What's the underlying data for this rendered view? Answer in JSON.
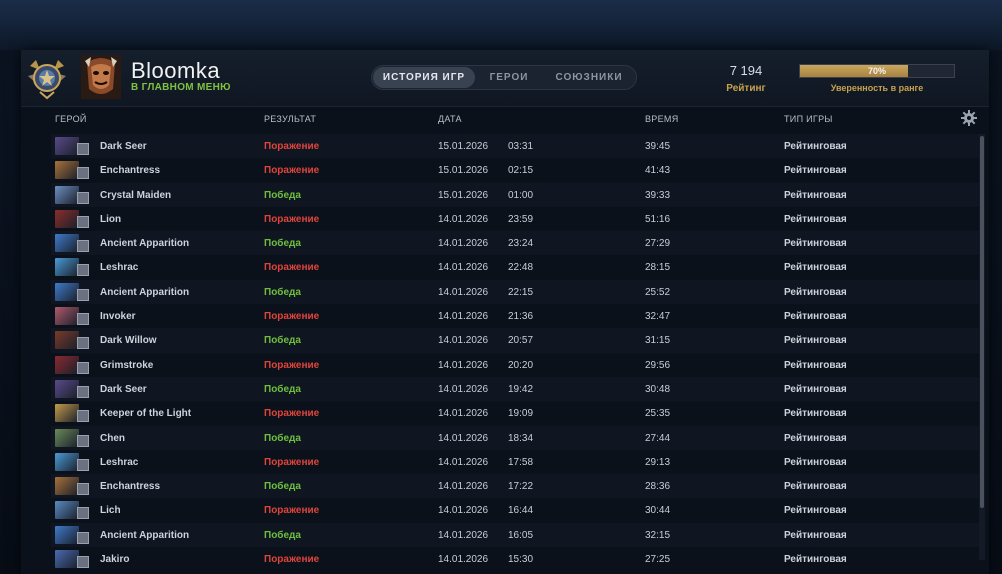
{
  "player": {
    "name": "Bloomka",
    "status": "В ГЛАВНОМ МЕНЮ"
  },
  "tabs": [
    {
      "label": "ИСТОРИЯ ИГР",
      "active": true
    },
    {
      "label": "ГЕРОИ",
      "active": false
    },
    {
      "label": "СОЮЗНИКИ",
      "active": false
    }
  ],
  "rating": {
    "value": "7 194",
    "label": "Рейтинг"
  },
  "confidence": {
    "value_text": "70%",
    "fraction": 0.7,
    "label": "Уверенность в ранге"
  },
  "columns": {
    "hero": "ГЕРОЙ",
    "result": "РЕЗУЛЬТАТ",
    "date": "ДАТА",
    "duration": "ВРЕМЯ",
    "game_type": "ТИП ИГРЫ"
  },
  "icons": {
    "settings": "gear-icon",
    "rank": "rank-medal-icon"
  },
  "colors": {
    "loss": "#e0443a",
    "win": "#6fbf3d",
    "accent_gold": "#c7a24e",
    "status_green": "#7fc241"
  },
  "matches": [
    {
      "hero": "Dark Seer",
      "result": "Поражение",
      "outcome": "loss",
      "date": "15.01.2026",
      "time": "03:31",
      "duration": "39:45",
      "type": "Рейтинговая",
      "portrait": "#5a4a8a"
    },
    {
      "hero": "Enchantress",
      "result": "Поражение",
      "outcome": "loss",
      "date": "15.01.2026",
      "time": "02:15",
      "duration": "41:43",
      "type": "Рейтинговая",
      "portrait": "#a8713a"
    },
    {
      "hero": "Crystal Maiden",
      "result": "Победа",
      "outcome": "win",
      "date": "15.01.2026",
      "time": "01:00",
      "duration": "39:33",
      "type": "Рейтинговая",
      "portrait": "#6e8fc2"
    },
    {
      "hero": "Lion",
      "result": "Поражение",
      "outcome": "loss",
      "date": "14.01.2026",
      "time": "23:59",
      "duration": "51:16",
      "type": "Рейтинговая",
      "portrait": "#8a2e2a"
    },
    {
      "hero": "Ancient Apparition",
      "result": "Победа",
      "outcome": "win",
      "date": "14.01.2026",
      "time": "23:24",
      "duration": "27:29",
      "type": "Рейтинговая",
      "portrait": "#3f7bc9"
    },
    {
      "hero": "Leshrac",
      "result": "Поражение",
      "outcome": "loss",
      "date": "14.01.2026",
      "time": "22:48",
      "duration": "28:15",
      "type": "Рейтинговая",
      "portrait": "#4a9ad6"
    },
    {
      "hero": "Ancient Apparition",
      "result": "Победа",
      "outcome": "win",
      "date": "14.01.2026",
      "time": "22:15",
      "duration": "25:52",
      "type": "Рейтинговая",
      "portrait": "#3f7bc9"
    },
    {
      "hero": "Invoker",
      "result": "Поражение",
      "outcome": "loss",
      "date": "14.01.2026",
      "time": "21:36",
      "duration": "32:47",
      "type": "Рейтинговая",
      "portrait": "#b05a6a"
    },
    {
      "hero": "Dark Willow",
      "result": "Победа",
      "outcome": "win",
      "date": "14.01.2026",
      "time": "20:57",
      "duration": "31:15",
      "type": "Рейтинговая",
      "portrait": "#7a3a2a"
    },
    {
      "hero": "Grimstroke",
      "result": "Поражение",
      "outcome": "loss",
      "date": "14.01.2026",
      "time": "20:20",
      "duration": "29:56",
      "type": "Рейтинговая",
      "portrait": "#8a2a30"
    },
    {
      "hero": "Dark Seer",
      "result": "Победа",
      "outcome": "win",
      "date": "14.01.2026",
      "time": "19:42",
      "duration": "30:48",
      "type": "Рейтинговая",
      "portrait": "#5a4a8a"
    },
    {
      "hero": "Keeper of the Light",
      "result": "Поражение",
      "outcome": "loss",
      "date": "14.01.2026",
      "time": "19:09",
      "duration": "25:35",
      "type": "Рейтинговая",
      "portrait": "#c29a4a"
    },
    {
      "hero": "Chen",
      "result": "Победа",
      "outcome": "win",
      "date": "14.01.2026",
      "time": "18:34",
      "duration": "27:44",
      "type": "Рейтинговая",
      "portrait": "#6a8a5a"
    },
    {
      "hero": "Leshrac",
      "result": "Поражение",
      "outcome": "loss",
      "date": "14.01.2026",
      "time": "17:58",
      "duration": "29:13",
      "type": "Рейтинговая",
      "portrait": "#4a9ad6"
    },
    {
      "hero": "Enchantress",
      "result": "Победа",
      "outcome": "win",
      "date": "14.01.2026",
      "time": "17:22",
      "duration": "28:36",
      "type": "Рейтинговая",
      "portrait": "#a8713a"
    },
    {
      "hero": "Lich",
      "result": "Поражение",
      "outcome": "loss",
      "date": "14.01.2026",
      "time": "16:44",
      "duration": "30:44",
      "type": "Рейтинговая",
      "portrait": "#5a8ac2"
    },
    {
      "hero": "Ancient Apparition",
      "result": "Победа",
      "outcome": "win",
      "date": "14.01.2026",
      "time": "16:05",
      "duration": "32:15",
      "type": "Рейтинговая",
      "portrait": "#3f7bc9"
    },
    {
      "hero": "Jakiro",
      "result": "Поражение",
      "outcome": "loss",
      "date": "14.01.2026",
      "time": "15:30",
      "duration": "27:25",
      "type": "Рейтинговая",
      "portrait": "#4a6ab0"
    }
  ]
}
